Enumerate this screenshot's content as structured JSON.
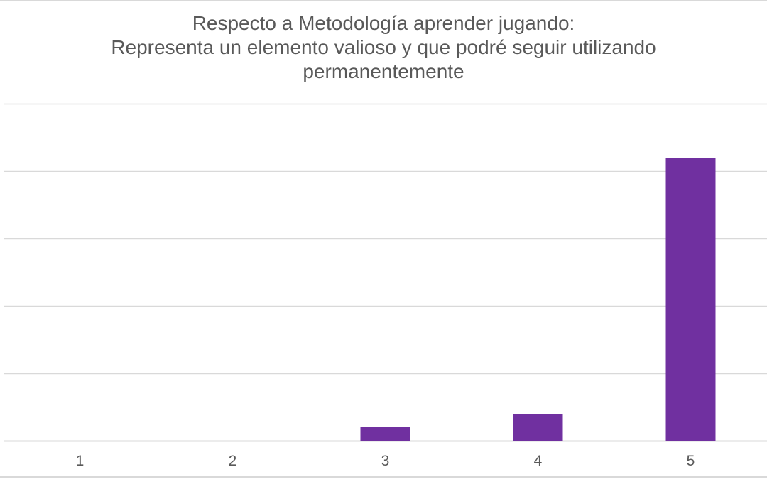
{
  "chart_data": {
    "type": "bar",
    "title_lines": [
      "Respecto a Metodología aprender jugando:",
      "Representa un elemento valioso y que podré seguir utilizando",
      "permanentemente"
    ],
    "categories": [
      "1",
      "2",
      "3",
      "4",
      "5"
    ],
    "values": [
      0,
      0,
      1,
      2,
      21
    ],
    "ylim": [
      0,
      25
    ],
    "grid": true,
    "legend": "none",
    "bar_color": "#7030A0",
    "gridline_color": "#d9d9d9"
  }
}
